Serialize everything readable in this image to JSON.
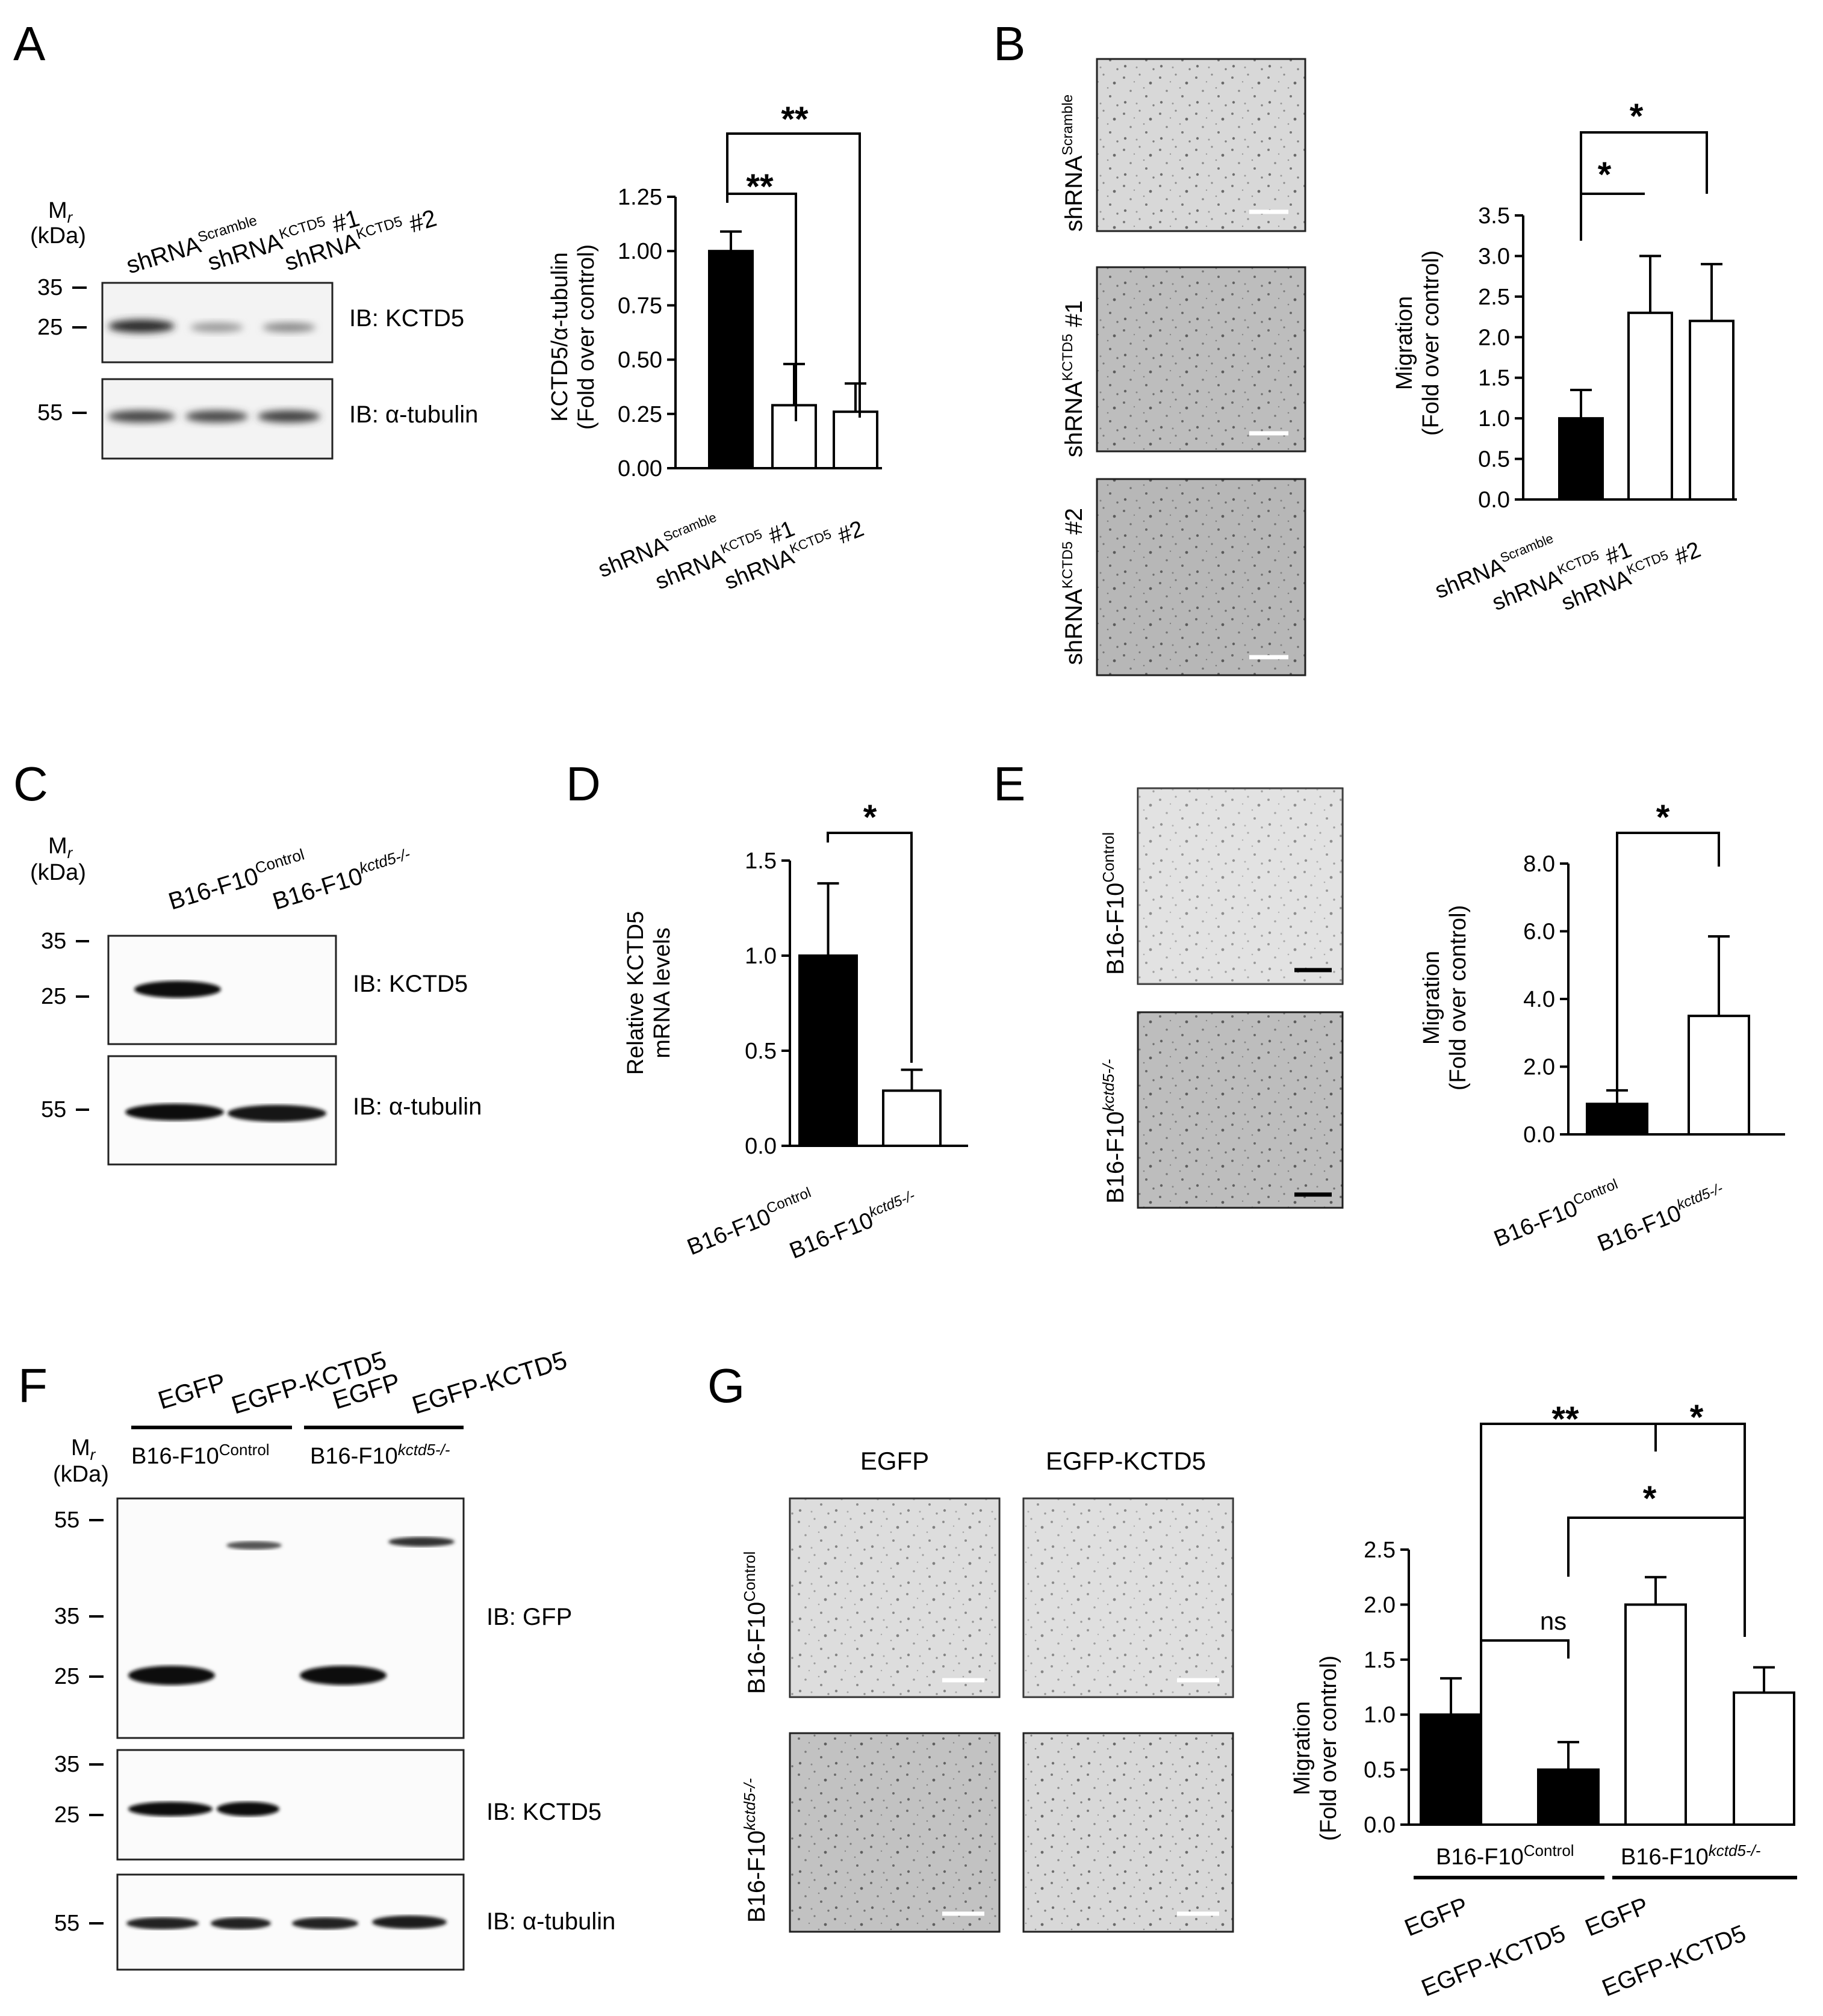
{
  "panels": {
    "A": {
      "letter": "A",
      "mr_label": "M",
      "mr_sub": "r",
      "kda_label": "(kDa)",
      "lanes": [
        {
          "base": "shRNA",
          "sup": "Scramble",
          "suffix": ""
        },
        {
          "base": "shRNA",
          "sup": "KCTD5",
          "suffix": " #1"
        },
        {
          "base": "shRNA",
          "sup": "KCTD5",
          "suffix": " #2"
        }
      ],
      "blot_kctd5_markers": [
        "35",
        "25"
      ],
      "blot_tubulin_markers": [
        "55"
      ],
      "ib_kctd5": "IB: KCTD5",
      "ib_tubulin": "IB: α-tubulin",
      "chart_ylabel_1": "KCTD5/α-tubulin",
      "chart_ylabel_2": "(Fold over control)",
      "sig": [
        "**",
        "**"
      ]
    },
    "B": {
      "letter": "B",
      "image_labels": [
        {
          "base": "shRNA",
          "sup": "Scramble",
          "suffix": ""
        },
        {
          "base": "shRNA",
          "sup": "KCTD5",
          "suffix": " #1"
        },
        {
          "base": "shRNA",
          "sup": "KCTD5",
          "suffix": " #2"
        }
      ],
      "chart_ylabel_1": "Migration",
      "chart_ylabel_2": "(Fold over control)",
      "sig": [
        "*",
        "*"
      ]
    },
    "C": {
      "letter": "C",
      "mr_label": "M",
      "mr_sub": "r",
      "kda_label": "(kDa)",
      "lanes": [
        {
          "base": "B16-F10",
          "sup": "Control"
        },
        {
          "base": "B16-F10",
          "sup": "kctd5-/-"
        }
      ],
      "blot_kctd5_markers": [
        "35",
        "25"
      ],
      "blot_tubulin_markers": [
        "55"
      ],
      "ib_kctd5": "IB: KCTD5",
      "ib_tubulin": "IB: α-tubulin"
    },
    "D": {
      "letter": "D",
      "chart_ylabel_1": "Relative KCTD5",
      "chart_ylabel_2": "mRNA levels",
      "sig": "*"
    },
    "E": {
      "letter": "E",
      "image_labels": [
        {
          "base": "B16-F10",
          "sup": "Control"
        },
        {
          "base": "B16-F10",
          "sup": "kctd5-/-"
        }
      ],
      "chart_ylabel_1": "Migration",
      "chart_ylabel_2": "(Fold over control)",
      "sig": "*"
    },
    "F": {
      "letter": "F",
      "top_labels": [
        "EGFP",
        "EGFP-KCTD5",
        "EGFP",
        "EGFP-KCTD5"
      ],
      "group_labels": [
        {
          "base": "B16-F10",
          "sup": "Control"
        },
        {
          "base": "B16-F10",
          "sup": "kctd5-/-"
        }
      ],
      "mr_label": "M",
      "mr_sub": "r",
      "kda_label": "(kDa)",
      "gfp_markers": [
        "55",
        "35",
        "25"
      ],
      "kctd5_markers": [
        "35",
        "25"
      ],
      "tubulin_markers": [
        "55"
      ],
      "ib_gfp": "IB: GFP",
      "ib_kctd5": "IB: KCTD5",
      "ib_tubulin": "IB: α-tubulin"
    },
    "G": {
      "letter": "G",
      "col_labels": [
        "EGFP",
        "EGFP-KCTD5"
      ],
      "row_labels": [
        {
          "base": "B16-F10",
          "sup": "Control"
        },
        {
          "base": "B16-F10",
          "sup": "kctd5-/-"
        }
      ],
      "chart_ylabel_1": "Migration",
      "chart_ylabel_2": "(Fold over control)",
      "sig": [
        "**",
        "*",
        "*",
        "ns"
      ],
      "group_labels": [
        {
          "base": "B16-F10",
          "sup": "Control"
        },
        {
          "base": "B16-F10",
          "sup": "kctd5-/-"
        }
      ],
      "x_labels": [
        "EGFP",
        "EGFP-KCTD5",
        "EGFP",
        "EGFP-KCTD5"
      ]
    }
  },
  "chart_data": [
    {
      "id": "A",
      "type": "bar",
      "categories": [
        "shRNA Scramble",
        "shRNA KCTD5 #1",
        "shRNA KCTD5 #2"
      ],
      "values": [
        1.0,
        0.29,
        0.26
      ],
      "errors": [
        0.09,
        0.19,
        0.13
      ],
      "fills": [
        "#000000",
        "#ffffff",
        "#ffffff"
      ],
      "ylim": [
        0,
        1.25
      ],
      "yticks": [
        "0.00",
        "0.25",
        "0.50",
        "0.75",
        "1.00",
        "1.25"
      ],
      "ylabel": "KCTD5/α-tubulin (Fold over control)"
    },
    {
      "id": "B",
      "type": "bar",
      "categories": [
        "shRNA Scramble",
        "shRNA KCTD5 #1",
        "shRNA KCTD5 #2"
      ],
      "values": [
        1.0,
        2.3,
        2.2
      ],
      "errors": [
        0.35,
        0.7,
        0.7
      ],
      "fills": [
        "#000000",
        "#ffffff",
        "#ffffff"
      ],
      "ylim": [
        0,
        3.5
      ],
      "yticks": [
        "0.0",
        "0.5",
        "1.0",
        "1.5",
        "2.0",
        "2.5",
        "3.0",
        "3.5"
      ],
      "ylabel": "Migration (Fold over control)"
    },
    {
      "id": "D",
      "type": "bar",
      "categories": [
        "B16-F10 Control",
        "B16-F10 kctd5-/-"
      ],
      "values": [
        1.0,
        0.29
      ],
      "errors": [
        0.38,
        0.11
      ],
      "fills": [
        "#000000",
        "#ffffff"
      ],
      "ylim": [
        0,
        1.5
      ],
      "yticks": [
        "0.0",
        "0.5",
        "1.0",
        "1.5"
      ],
      "ylabel": "Relative KCTD5 mRNA levels"
    },
    {
      "id": "E",
      "type": "bar",
      "categories": [
        "B16-F10 Control",
        "B16-F10 kctd5-/-"
      ],
      "values": [
        0.9,
        3.5
      ],
      "errors": [
        0.4,
        2.35
      ],
      "fills": [
        "#000000",
        "#ffffff"
      ],
      "ylim": [
        0,
        8.0
      ],
      "yticks": [
        "0.0",
        "2.0",
        "4.0",
        "6.0",
        "8.0"
      ],
      "ylabel": "Migration (Fold over control)"
    },
    {
      "id": "G",
      "type": "bar",
      "categories": [
        "EGFP",
        "EGFP-KCTD5",
        "EGFP",
        "EGFP-KCTD5"
      ],
      "groups": [
        "B16-F10 Control",
        "B16-F10 kctd5-/-"
      ],
      "values": [
        1.0,
        0.5,
        2.0,
        1.2
      ],
      "errors": [
        0.33,
        0.25,
        0.25,
        0.23
      ],
      "fills": [
        "#000000",
        "#000000",
        "#ffffff",
        "#ffffff"
      ],
      "ylim": [
        0,
        2.5
      ],
      "yticks": [
        "0.0",
        "0.5",
        "1.0",
        "1.5",
        "2.0",
        "2.5"
      ],
      "ylabel": "Migration (Fold over control)"
    }
  ]
}
